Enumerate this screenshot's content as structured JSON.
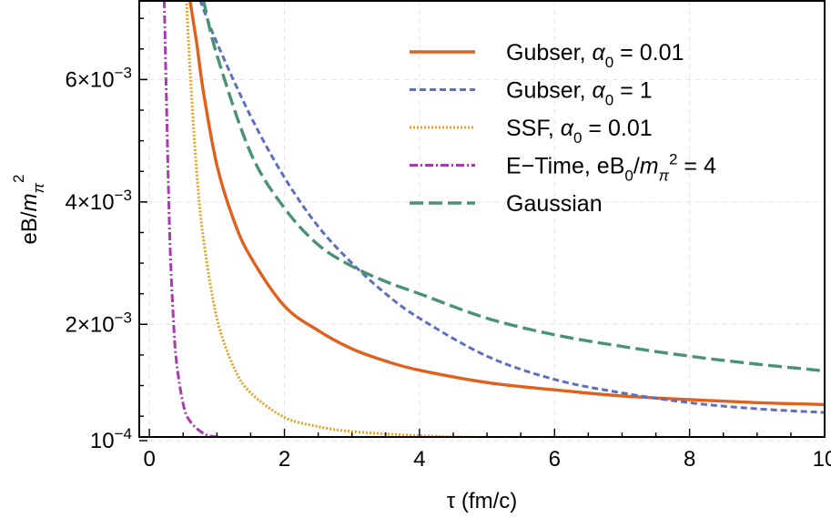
{
  "chart_data": {
    "type": "line",
    "xlabel": "τ (fm/c)",
    "ylabel": "eB/mπ²",
    "xlim": [
      0,
      10
    ],
    "ylim": [
      0.00016,
      0.0073
    ],
    "x_ticks": [
      0,
      2,
      4,
      6,
      8,
      10
    ],
    "x_tick_labels": [
      "0",
      "2",
      "4",
      "6",
      "8",
      "10"
    ],
    "y_ticks": [
      0.0001,
      0.002,
      0.004,
      0.006
    ],
    "y_tick_labels": [
      {
        "mant": "",
        "base": "10",
        "exp": "−4"
      },
      {
        "mant": "2×",
        "base": "10",
        "exp": "−3"
      },
      {
        "mant": "4×",
        "base": "10",
        "exp": "−3"
      },
      {
        "mant": "6×",
        "base": "10",
        "exp": "−3"
      }
    ],
    "grid": true,
    "legend_position": "top-right",
    "series": [
      {
        "name": "Gubser,  α0 = 0.01",
        "name_parts": [
          {
            "t": "Gubser,  "
          },
          {
            "t": "α",
            "i": true
          },
          {
            "t": "0",
            "sub": true
          },
          {
            "t": " = 0.01"
          }
        ],
        "color": "#e0601d",
        "dash": "solid",
        "x": [
          0.6,
          0.7,
          0.8,
          1.0,
          1.25,
          1.5,
          2.0,
          2.5,
          3.0,
          3.5,
          4.0,
          5.0,
          6.0,
          7.0,
          8.0,
          9.0,
          10.0
        ],
        "y": [
          0.0073,
          0.0066,
          0.0058,
          0.0046,
          0.0037,
          0.0031,
          0.0023,
          0.0019,
          0.0016,
          0.0014,
          0.00125,
          0.00105,
          0.00093,
          0.00083,
          0.00077,
          0.00072,
          0.00069
        ]
      },
      {
        "name": "Gubser,  α0 = 1",
        "name_parts": [
          {
            "t": "Gubser,  "
          },
          {
            "t": "α",
            "i": true
          },
          {
            "t": "0",
            "sub": true
          },
          {
            "t": " = 1"
          }
        ],
        "color": "#5f6fc0",
        "dash": "short",
        "x": [
          0.75,
          1.0,
          1.5,
          2.0,
          2.5,
          3.0,
          3.5,
          4.0,
          5.0,
          6.0,
          7.0,
          8.0,
          9.0,
          10.0
        ],
        "y": [
          0.0073,
          0.0066,
          0.0054,
          0.0044,
          0.0036,
          0.003,
          0.0025,
          0.0021,
          0.00148,
          0.0011,
          0.00088,
          0.00072,
          0.00062,
          0.00056
        ]
      },
      {
        "name": "SSF,        α0 = 0.01",
        "name_parts": [
          {
            "t": "SSF,        "
          },
          {
            "t": "α",
            "i": true
          },
          {
            "t": "0",
            "sub": true
          },
          {
            "t": " = 0.01"
          }
        ],
        "color": "#e6a11f",
        "dash": "dotted",
        "x": [
          0.55,
          0.6,
          0.7,
          0.8,
          1.0,
          1.25,
          1.5,
          2.0,
          2.5,
          3.0,
          4.0,
          5.0,
          6.0,
          8.0,
          10.0
        ],
        "y": [
          0.0073,
          0.0062,
          0.0045,
          0.0034,
          0.0021,
          0.0013,
          0.00088,
          0.00048,
          0.00033,
          0.00025,
          0.00018,
          0.00015,
          0.00013,
          0.00011,
          0.0001
        ]
      },
      {
        "name": "E−Time, eB0/mπ² = 4",
        "name_parts": [
          {
            "t": "E−Time, eB"
          },
          {
            "t": "0",
            "sub": true
          },
          {
            "t": "/"
          },
          {
            "t": "m",
            "i": true
          },
          {
            "t": "π",
            "sub": true,
            "i": true
          },
          {
            "t": "2",
            "sup": true
          },
          {
            "t": " = 4"
          }
        ],
        "color": "#a63cb0",
        "dash": "dashdot",
        "x": [
          0.22,
          0.25,
          0.3,
          0.35,
          0.4,
          0.5,
          0.6,
          0.8,
          1.0,
          1.5,
          2.0,
          3.0,
          4.0,
          6.0,
          8.0,
          10.0
        ],
        "y": [
          0.0073,
          0.0058,
          0.0035,
          0.0022,
          0.0014,
          0.0007,
          0.00042,
          0.00022,
          0.00016,
          0.00012,
          0.00011,
          0.000105,
          0.000102,
          0.0001,
          0.0001,
          0.0001
        ]
      },
      {
        "name": "Gaussian",
        "name_parts": [
          {
            "t": "Gaussian"
          }
        ],
        "color": "#4a9274",
        "dash": "long",
        "x": [
          0.8,
          1.0,
          1.5,
          2.0,
          2.5,
          3.0,
          3.5,
          4.0,
          5.0,
          6.0,
          7.0,
          8.0,
          9.0,
          10.0
        ],
        "y": [
          0.0073,
          0.0064,
          0.0048,
          0.0039,
          0.0033,
          0.00295,
          0.0027,
          0.0025,
          0.0021,
          0.00183,
          0.00164,
          0.00148,
          0.00135,
          0.00124
        ]
      }
    ]
  }
}
